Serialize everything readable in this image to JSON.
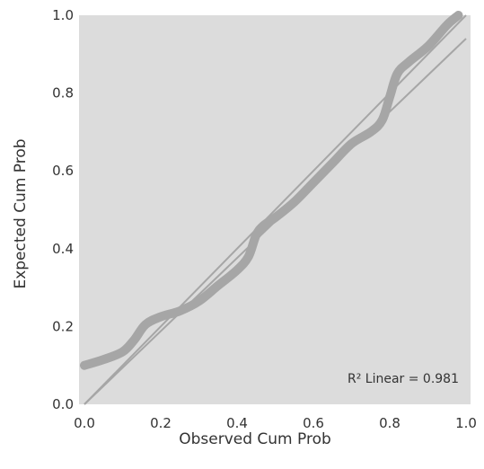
{
  "chart_data": {
    "type": "line",
    "title": "",
    "xlabel": "Observed Cum Prob",
    "ylabel": "Expected Cum Prob",
    "xlim": [
      0.0,
      1.0
    ],
    "ylim": [
      0.0,
      1.0
    ],
    "xticks": [
      "0.0",
      "0.2",
      "0.4",
      "0.6",
      "0.8",
      "1.0"
    ],
    "yticks": [
      "0.0",
      "0.2",
      "0.4",
      "0.6",
      "0.8",
      "1.0"
    ],
    "grid": false,
    "legend": "none",
    "annotation": "R² Linear = 0.981",
    "colors": {
      "plot_background": "#dcdcdc",
      "data_line": "#a6a6a6",
      "reference_line": "#a6a6a6",
      "text": "#333333"
    },
    "series": [
      {
        "x": [
          0.0,
          0.05,
          0.1,
          0.13,
          0.16,
          0.2,
          0.25,
          0.3,
          0.35,
          0.4,
          0.43,
          0.45,
          0.47,
          0.5,
          0.55,
          0.6,
          0.65,
          0.7,
          0.75,
          0.78,
          0.8,
          0.82,
          0.85,
          0.9,
          0.95,
          0.98
        ],
        "y": [
          0.1,
          0.115,
          0.135,
          0.165,
          0.205,
          0.225,
          0.24,
          0.265,
          0.305,
          0.345,
          0.38,
          0.435,
          0.46,
          0.48,
          0.52,
          0.57,
          0.62,
          0.67,
          0.7,
          0.73,
          0.79,
          0.85,
          0.88,
          0.92,
          0.975,
          1.0
        ]
      },
      {
        "x": [
          0.0,
          1.0
        ],
        "y": [
          0.0,
          0.94
        ]
      },
      {
        "x": [
          0.0,
          1.0
        ],
        "y": [
          0.0,
          1.0
        ]
      }
    ]
  }
}
